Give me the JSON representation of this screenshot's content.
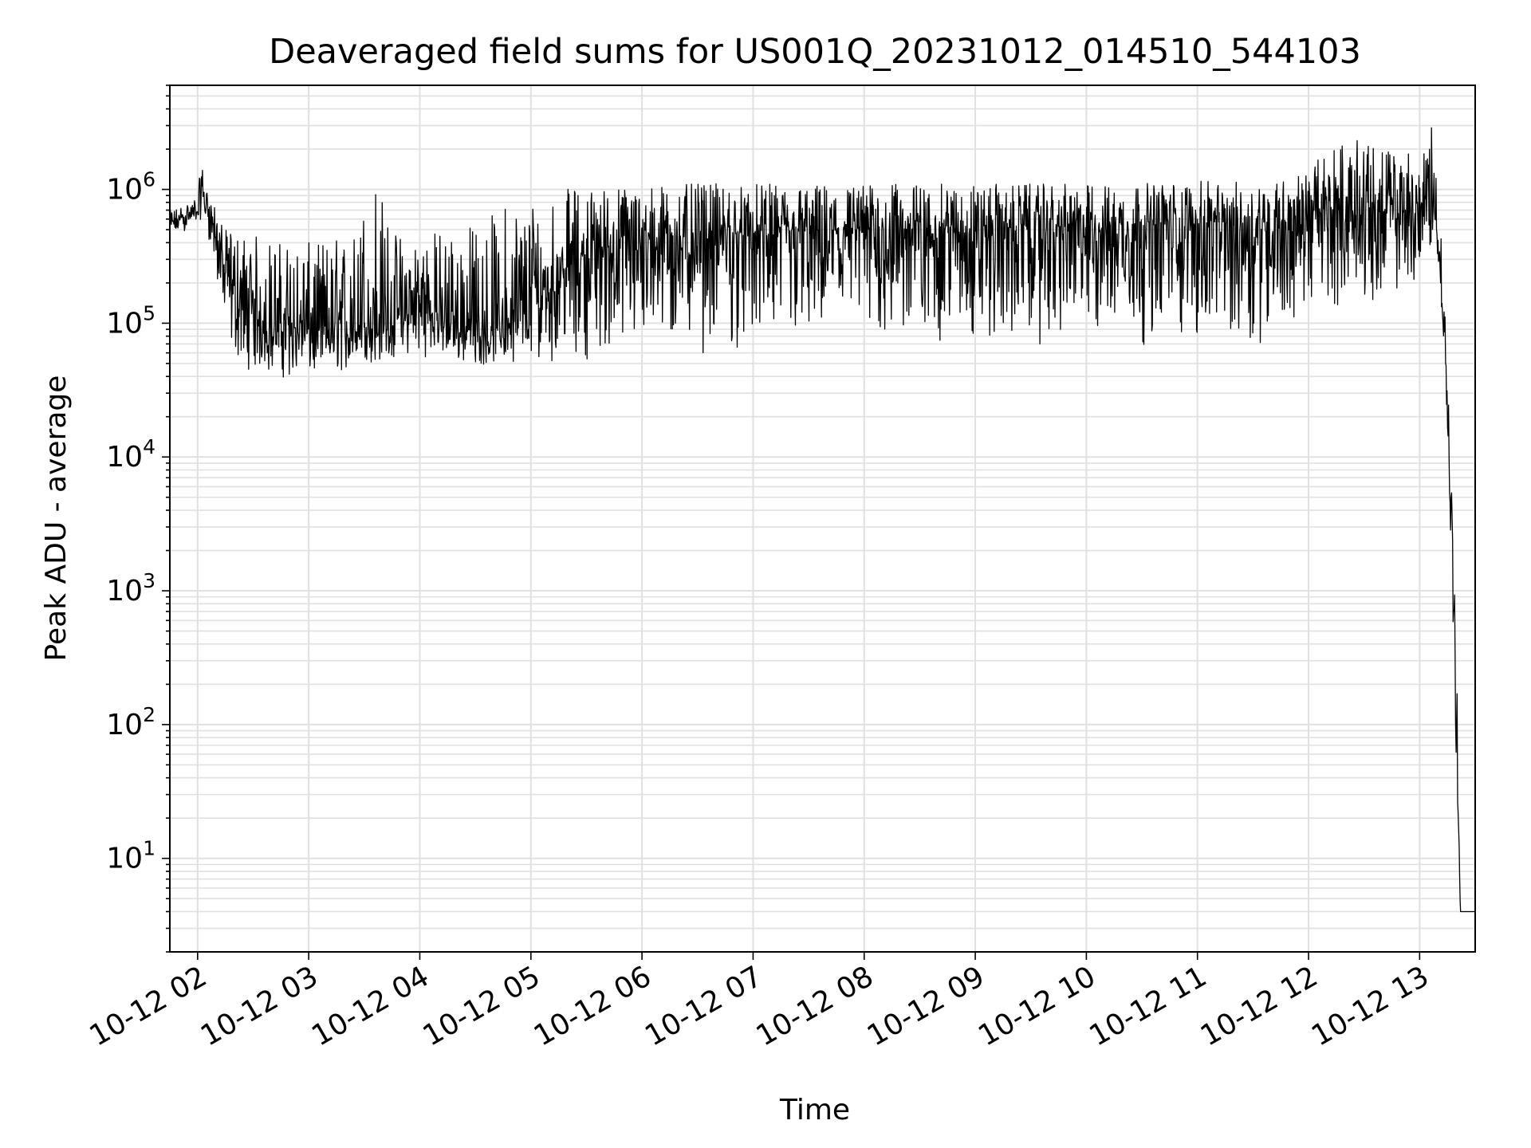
{
  "chart_data": {
    "type": "line",
    "title": "Deaveraged field sums for US001Q_20231012_014510_544103",
    "xlabel": "Time",
    "ylabel": "Peak ADU - average",
    "yscale": "log",
    "ylim": [
      2,
      6000000
    ],
    "xlim": [
      "2023-10-12 01:45",
      "2023-10-12 13:30"
    ],
    "grid": true,
    "line_color": "#000000",
    "grid_color": "#e0e0e0",
    "x_ticks": [
      {
        "x": "2023-10-12 02:00",
        "label": "10-12 02"
      },
      {
        "x": "2023-10-12 03:00",
        "label": "10-12 03"
      },
      {
        "x": "2023-10-12 04:00",
        "label": "10-12 04"
      },
      {
        "x": "2023-10-12 05:00",
        "label": "10-12 05"
      },
      {
        "x": "2023-10-12 06:00",
        "label": "10-12 06"
      },
      {
        "x": "2023-10-12 07:00",
        "label": "10-12 07"
      },
      {
        "x": "2023-10-12 08:00",
        "label": "10-12 08"
      },
      {
        "x": "2023-10-12 09:00",
        "label": "10-12 09"
      },
      {
        "x": "2023-10-12 10:00",
        "label": "10-12 10"
      },
      {
        "x": "2023-10-12 11:00",
        "label": "10-12 11"
      },
      {
        "x": "2023-10-12 12:00",
        "label": "10-12 12"
      },
      {
        "x": "2023-10-12 13:00",
        "label": "10-12 13"
      }
    ],
    "y_ticks": [
      {
        "value": 10,
        "base": "10",
        "exp": "1"
      },
      {
        "value": 100,
        "base": "10",
        "exp": "2"
      },
      {
        "value": 1000,
        "base": "10",
        "exp": "3"
      },
      {
        "value": 10000,
        "base": "10",
        "exp": "4"
      },
      {
        "value": 100000,
        "base": "10",
        "exp": "5"
      },
      {
        "value": 1000000,
        "base": "10",
        "exp": "6"
      }
    ],
    "series": [
      {
        "x": [
          "2023-10-12 01:45",
          "2023-10-12 01:50",
          "2023-10-12 01:55",
          "2023-10-12 02:00",
          "2023-10-12 02:02",
          "2023-10-12 02:05",
          "2023-10-12 02:08",
          "2023-10-12 02:15",
          "2023-10-12 02:25",
          "2023-10-12 02:35",
          "2023-10-12 02:45",
          "2023-10-12 03:00",
          "2023-10-12 03:15",
          "2023-10-12 03:25",
          "2023-10-12 03:35",
          "2023-10-12 03:45",
          "2023-10-12 03:55",
          "2023-10-12 04:05",
          "2023-10-12 04:15",
          "2023-10-12 04:25",
          "2023-10-12 04:35",
          "2023-10-12 04:45",
          "2023-10-12 04:55",
          "2023-10-12 05:10",
          "2023-10-12 05:30",
          "2023-10-12 06:00",
          "2023-10-12 06:30",
          "2023-10-12 07:00",
          "2023-10-12 07:30",
          "2023-10-12 08:00",
          "2023-10-12 08:30",
          "2023-10-12 09:00",
          "2023-10-12 09:30",
          "2023-10-12 10:00",
          "2023-10-12 10:30",
          "2023-10-12 11:00",
          "2023-10-12 11:30",
          "2023-10-12 11:45",
          "2023-10-12 12:00",
          "2023-10-12 12:15",
          "2023-10-12 12:30",
          "2023-10-12 12:45",
          "2023-10-12 13:00",
          "2023-10-12 13:05",
          "2023-10-12 13:08",
          "2023-10-12 13:10",
          "2023-10-12 13:12",
          "2023-10-12 13:14",
          "2023-10-12 13:16",
          "2023-10-12 13:18",
          "2023-10-12 13:20",
          "2023-10-12 13:22",
          "2023-10-12 13:24",
          "2023-10-12 13:26",
          "2023-10-12 13:30"
        ],
        "y": [
          550000,
          600000,
          650000,
          700000,
          900000,
          800000,
          600000,
          250000,
          120000,
          100000,
          95000,
          90000,
          85000,
          90000,
          95000,
          100000,
          120000,
          130000,
          100000,
          90000,
          85000,
          90000,
          110000,
          200000,
          350000,
          420000,
          450000,
          470000,
          480000,
          500000,
          500000,
          510000,
          520000,
          530000,
          540000,
          550000,
          560000,
          580000,
          620000,
          700000,
          680000,
          650000,
          700000,
          900000,
          700000,
          400000,
          150000,
          60000,
          10000,
          1000,
          100,
          4,
          4,
          4,
          4
        ],
        "y_min": [
          420000,
          450000,
          500000,
          550000,
          600000,
          500000,
          300000,
          60000,
          45000,
          40000,
          38000,
          35000,
          40000,
          45000,
          48000,
          50000,
          55000,
          55000,
          50000,
          48000,
          47000,
          50000,
          52000,
          50000,
          52000,
          55000,
          56000,
          58000,
          60000,
          62000,
          62000,
          63000,
          64000,
          64000,
          65000,
          65000,
          66000,
          70000,
          110000,
          130000,
          140000,
          150000,
          180000,
          300000,
          500000,
          300000,
          100000,
          40000,
          5000,
          300,
          30,
          4,
          4,
          4,
          4
        ],
        "y_max": [
          700000,
          750000,
          800000,
          900000,
          1650000,
          1000000,
          800000,
          500000,
          480000,
          450000,
          420000,
          400000,
          450000,
          500000,
          1600000,
          500000,
          480000,
          500000,
          520000,
          550000,
          600000,
          800000,
          900000,
          1000000,
          1050000,
          1100000,
          1100000,
          1100000,
          1100000,
          1100000,
          1100000,
          1100000,
          1100000,
          1100000,
          1120000,
          1150000,
          1150000,
          1200000,
          1400000,
          2400000,
          2300000,
          2000000,
          2000000,
          3000000,
          2800000,
          1500000,
          500000,
          150000,
          30000,
          3000,
          300,
          4,
          4,
          4,
          4
        ]
      }
    ]
  }
}
